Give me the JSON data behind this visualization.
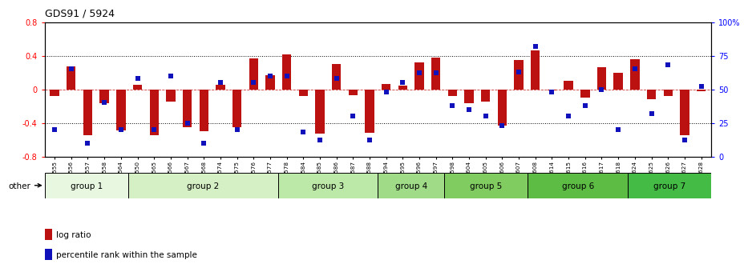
{
  "title": "GDS91 / 5924",
  "samples": [
    "GSM1555",
    "GSM1556",
    "GSM1557",
    "GSM1558",
    "GSM1564",
    "GSM1550",
    "GSM1565",
    "GSM1566",
    "GSM1567",
    "GSM1568",
    "GSM1574",
    "GSM1575",
    "GSM1576",
    "GSM1577",
    "GSM1578",
    "GSM1584",
    "GSM1585",
    "GSM1586",
    "GSM1587",
    "GSM1588",
    "GSM1594",
    "GSM1595",
    "GSM1596",
    "GSM1597",
    "GSM1598",
    "GSM1604",
    "GSM1605",
    "GSM1606",
    "GSM1607",
    "GSM1608",
    "GSM1614",
    "GSM1615",
    "GSM1616",
    "GSM1617",
    "GSM1618",
    "GSM1624",
    "GSM1625",
    "GSM1626",
    "GSM1627",
    "GSM1628"
  ],
  "log_ratio": [
    -0.08,
    0.27,
    -0.55,
    -0.17,
    -0.49,
    0.05,
    -0.55,
    -0.15,
    -0.45,
    -0.5,
    0.05,
    -0.45,
    0.37,
    0.17,
    0.42,
    -0.08,
    -0.53,
    0.3,
    -0.07,
    -0.52,
    0.06,
    0.04,
    0.32,
    0.38,
    -0.08,
    -0.17,
    -0.15,
    -0.43,
    0.35,
    0.46,
    -0.01,
    0.1,
    -0.1,
    0.26,
    0.2,
    0.36,
    -0.12,
    -0.08,
    -0.55,
    -0.02
  ],
  "percentile": [
    20,
    65,
    10,
    40,
    20,
    58,
    20,
    60,
    25,
    10,
    55,
    20,
    55,
    60,
    60,
    18,
    12,
    58,
    30,
    12,
    48,
    55,
    62,
    62,
    38,
    35,
    30,
    23,
    63,
    82,
    48,
    30,
    38,
    50,
    20,
    65,
    32,
    68,
    12,
    52
  ],
  "groups": [
    {
      "name": "group 1",
      "start": 0,
      "end": 4,
      "color": "#e8f8e0"
    },
    {
      "name": "group 2",
      "start": 5,
      "end": 13,
      "color": "#d4f0c4"
    },
    {
      "name": "group 3",
      "start": 14,
      "end": 19,
      "color": "#bce8a8"
    },
    {
      "name": "group 4",
      "start": 20,
      "end": 23,
      "color": "#a0dc88"
    },
    {
      "name": "group 5",
      "start": 24,
      "end": 28,
      "color": "#80cc60"
    },
    {
      "name": "group 6",
      "start": 29,
      "end": 34,
      "color": "#5cbc44"
    },
    {
      "name": "group 7",
      "start": 35,
      "end": 39,
      "color": "#44bb44"
    }
  ],
  "bar_color": "#bb1111",
  "dot_color": "#1111bb",
  "ylim": [
    -0.8,
    0.8
  ],
  "y2lim": [
    0,
    100
  ],
  "yticks_left": [
    -0.8,
    -0.4,
    0.0,
    0.4,
    0.8
  ],
  "yticks_right": [
    0,
    25,
    50,
    75,
    100
  ],
  "ytick_labels_right": [
    "0",
    "25",
    "50",
    "75",
    "100%"
  ],
  "grid_values": [
    -0.4,
    0.4
  ],
  "bar_width": 0.55,
  "dot_size": 18
}
